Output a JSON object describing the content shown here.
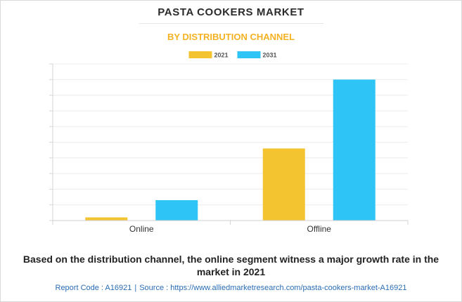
{
  "header": {
    "title": "PASTA COOKERS MARKET",
    "subtitle": "BY DISTRIBUTION CHANNEL"
  },
  "chart_data": {
    "type": "bar",
    "categories": [
      "Online",
      "Offline"
    ],
    "series": [
      {
        "name": "2021",
        "values": [
          0.2,
          4.6
        ],
        "color": "#f4c430"
      },
      {
        "name": "2031",
        "values": [
          1.3,
          9.0
        ],
        "color": "#2ec5f6"
      }
    ],
    "ylim": [
      0,
      10
    ],
    "grid": true,
    "legend": "top-center",
    "title": "PASTA COOKERS MARKET",
    "subtitle": "BY DISTRIBUTION CHANNEL",
    "xlabel": "",
    "ylabel": ""
  },
  "caption": "Based on the distribution channel, the online segment witness a major growth rate in the market in 2021",
  "footer": {
    "report_code": "Report Code : A16921",
    "separator": "|",
    "source": "Source : https://www.alliedmarketresearch.com/pasta-cookers-market-A16921"
  }
}
